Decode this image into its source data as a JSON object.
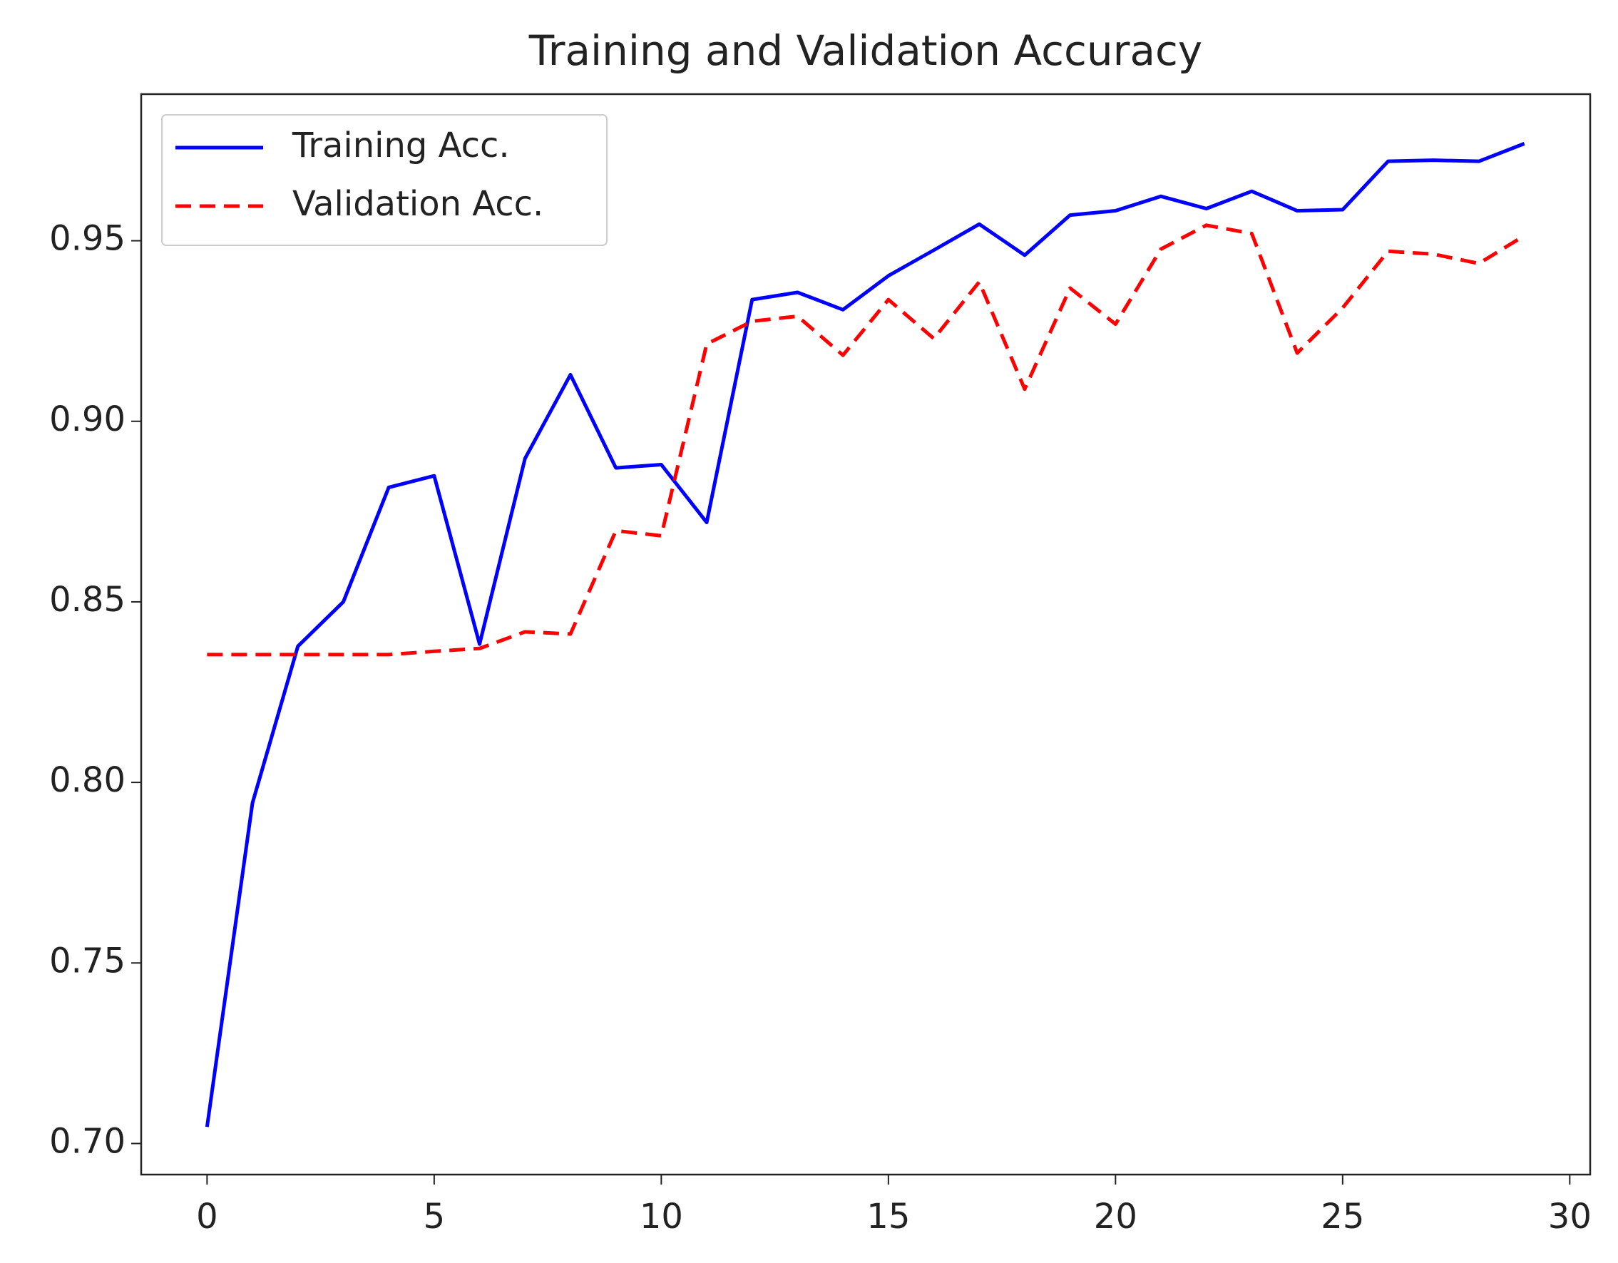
{
  "chart_data": {
    "type": "line",
    "title": "Training and Validation Accuracy",
    "x": [
      0,
      1,
      2,
      3,
      4,
      5,
      6,
      7,
      8,
      9,
      10,
      11,
      12,
      13,
      14,
      15,
      16,
      17,
      18,
      19,
      20,
      21,
      22,
      23,
      24,
      25,
      26,
      27,
      28,
      29
    ],
    "series": [
      {
        "name": "Training Acc.",
        "color": "#0000ff",
        "linestyle": "solid",
        "values": [
          0.7046,
          0.7943,
          0.8377,
          0.85,
          0.8817,
          0.8849,
          0.8383,
          0.8897,
          0.9129,
          0.8871,
          0.888,
          0.872,
          0.9337,
          0.9357,
          0.9309,
          0.9403,
          0.9474,
          0.9546,
          0.946,
          0.9571,
          0.9583,
          0.9623,
          0.9589,
          0.9637,
          0.9583,
          0.9586,
          0.972,
          0.9723,
          0.972,
          0.9769
        ]
      },
      {
        "name": "Validation Acc.",
        "color": "#ff0000",
        "linestyle": "dashed",
        "values": [
          0.8354,
          0.8354,
          0.8354,
          0.8354,
          0.8354,
          0.8363,
          0.8371,
          0.8417,
          0.8411,
          0.8697,
          0.8683,
          0.9214,
          0.9277,
          0.9291,
          0.9183,
          0.9337,
          0.9229,
          0.9386,
          0.9089,
          0.9369,
          0.9269,
          0.9477,
          0.9543,
          0.952,
          0.9189,
          0.9314,
          0.9471,
          0.9463,
          0.9437,
          0.9514
        ]
      }
    ],
    "xlim": [
      -1.45,
      30.45
    ],
    "xticks": [
      0,
      5,
      10,
      15,
      20,
      25,
      30
    ],
    "ylim": [
      0.6914,
      0.9906
    ],
    "yticks": [
      {
        "value": 0.7,
        "label": "0.70"
      },
      0.75,
      {
        "value": 0.8,
        "label": "0.80"
      },
      0.85,
      {
        "value": 0.9,
        "label": "0.90"
      },
      0.95
    ],
    "legend": "upper left",
    "grid": false
  }
}
